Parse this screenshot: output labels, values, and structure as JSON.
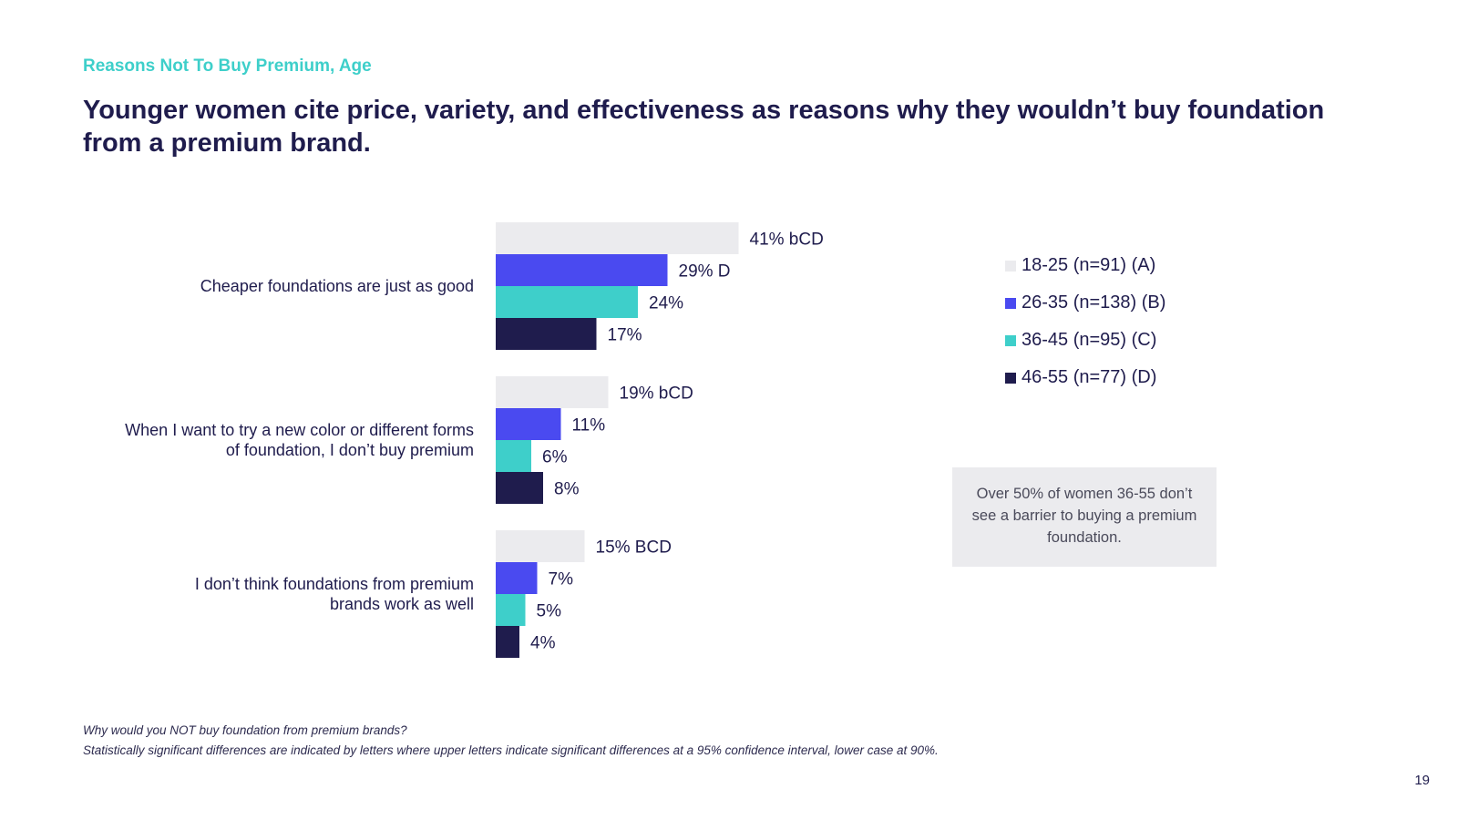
{
  "slide": {
    "eyebrow": "Reasons Not To Buy Premium, Age",
    "headline": "Younger women cite price, variety, and effectiveness as reasons why they wouldn’t buy foundation from a premium brand.",
    "callout": "Over 50% of women 36-55 don’t see a barrier to buying a premium foundation.",
    "footnote_question": "Why would you NOT buy foundation from premium brands?",
    "footnote_stats": "Statistically significant differences are indicated by letters where upper letters indicate significant differences at a 95% confidence interval, lower case at 90%.",
    "page_number": "19"
  },
  "colors": {
    "title": "#1f1c4d",
    "eyebrow": "#3ecfca",
    "series": [
      "#ebebee",
      "#4a4af0",
      "#3ecfca",
      "#1f1c4d"
    ]
  },
  "chart_data": {
    "type": "bar",
    "orientation": "horizontal",
    "categories": [
      [
        "Cheaper foundations are just as good"
      ],
      [
        "When I want to try a new color or different forms",
        "of foundation, I don’t buy premium"
      ],
      [
        "I don’t think foundations from premium",
        "brands work as well"
      ]
    ],
    "series": [
      {
        "name": "18-25 (n=91) (A)",
        "values": [
          41,
          19,
          15
        ],
        "labels": [
          "41% bCD",
          "19% bCD",
          "15% BCD"
        ]
      },
      {
        "name": "26-35 (n=138) (B)",
        "values": [
          29,
          11,
          7
        ],
        "labels": [
          "29% D",
          "11%",
          "7%"
        ]
      },
      {
        "name": "36-45 (n=95) (C)",
        "values": [
          24,
          6,
          5
        ],
        "labels": [
          "24%",
          "6%",
          "5%"
        ]
      },
      {
        "name": "46-55 (n=77) (D)",
        "values": [
          17,
          8,
          4
        ],
        "labels": [
          "17%",
          "8%",
          "4%"
        ]
      }
    ],
    "xlim": [
      0,
      50
    ],
    "legend": "right",
    "grid": false
  }
}
